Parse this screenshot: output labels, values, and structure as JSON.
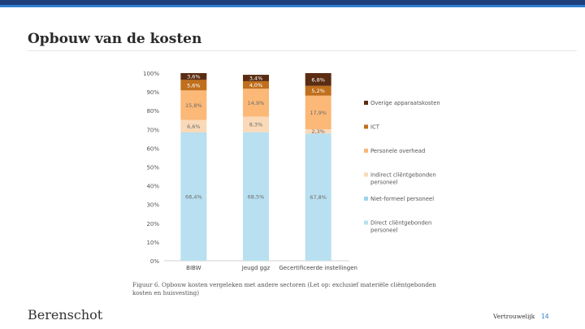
{
  "page": {
    "title": "Opbouw van de kosten",
    "caption": "Figuur 6. Opbouw kosten vergeleken met andere sectoren (Let op: exclusief materiële cliëntgebonden kosten en huisvesting)",
    "brand": "Berenschot",
    "confidentiality": "Vertrouwelijk",
    "page_number": "14"
  },
  "chart_data": {
    "type": "bar",
    "stacked": true,
    "title": "",
    "xlabel": "",
    "ylabel": "",
    "ylim": [
      0,
      100
    ],
    "y_ticks": [
      "0%",
      "10%",
      "20%",
      "30%",
      "40%",
      "50%",
      "60%",
      "70%",
      "80%",
      "90%",
      "100%"
    ],
    "categories": [
      "BIBW",
      "Jeugd ggz",
      "Gecertificeerde instellingen"
    ],
    "series": [
      {
        "name": "Direct cliëntgebonden personeel",
        "color": "#b8e0f0",
        "values": [
          68.4,
          68.5,
          67.8
        ],
        "labels": [
          "68,4%",
          "68,5%",
          "67,8%"
        ]
      },
      {
        "name": "Niet-formeel personeel",
        "color": "#9dd4ec",
        "values": [
          0,
          0,
          0
        ],
        "labels": [
          "",
          "",
          ""
        ]
      },
      {
        "name": "Indirect cliëntgebonden personeel",
        "color": "#f9d9b8",
        "values": [
          6.6,
          8.3,
          2.3
        ],
        "labels": [
          "6,6%",
          "8,3%",
          "2,3%"
        ]
      },
      {
        "name": "Personele overhead",
        "color": "#fbb877",
        "values": [
          15.8,
          14.9,
          17.9
        ],
        "labels": [
          "15,8%",
          "14,9%",
          "17,9%"
        ]
      },
      {
        "name": "ICT",
        "color": "#c06f1c",
        "values": [
          5.6,
          4.0,
          5.2
        ],
        "labels": [
          "5,6%",
          "4,0%",
          "5,2%"
        ]
      },
      {
        "name": "Overige apparaatskosten",
        "color": "#5a2c12",
        "values": [
          3.6,
          3.4,
          6.8
        ],
        "labels": [
          "3,6%",
          "3,4%",
          "6,8%"
        ]
      }
    ],
    "legend_order": [
      "Overige apparaatskosten",
      "ICT",
      "Personele overhead",
      "Indirect cliëntgebonden personeel",
      "Niet-formeel personeel",
      "Direct cliëntgebonden personeel"
    ],
    "legend_text": {
      "Overige apparaatskosten": [
        "Overige apparaatskosten"
      ],
      "ICT": [
        "ICT"
      ],
      "Personele overhead": [
        "Personele overhead"
      ],
      "Indirect cliëntgebonden personeel": [
        "Indirect cliëntgebonden",
        "personeel"
      ],
      "Niet-formeel personeel": [
        "Niet-formeel personeel"
      ],
      "Direct cliëntgebonden personeel": [
        "Direct cliëntgebonden",
        "personeel"
      ]
    },
    "legend_position": "right",
    "grid": false
  }
}
